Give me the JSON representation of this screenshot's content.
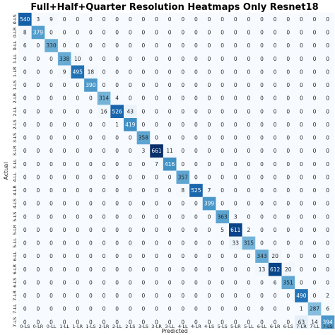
{
  "chart_data": {
    "type": "heatmap",
    "title": "Full+Half+Quarter Resolution Heatmaps Only Resnet18",
    "xlabel": "Predicted",
    "ylabel": "Actual",
    "labels": [
      "0-LS",
      "0-LR",
      "0-LL",
      "1-LL",
      "1-LR",
      "1-LS",
      "2-LR",
      "2-LL",
      "2-LS",
      "3-LS",
      "3-LR",
      "3-LL",
      "4-LL",
      "4-LR",
      "4-LS",
      "5-LS",
      "5-LR",
      "5-LL",
      "6-LL",
      "6-LR",
      "6-LS",
      "7-LR",
      "7-LL",
      "7-LS"
    ],
    "matrix": [
      [
        540,
        3,
        9,
        0,
        0,
        0,
        0,
        0,
        0,
        0,
        0,
        0,
        0,
        0,
        0,
        0,
        0,
        0,
        0,
        0,
        0,
        0,
        0,
        0
      ],
      [
        8,
        379,
        0,
        0,
        0,
        0,
        0,
        0,
        0,
        0,
        0,
        0,
        0,
        0,
        0,
        0,
        0,
        0,
        0,
        0,
        0,
        0,
        0,
        0
      ],
      [
        6,
        0,
        330,
        0,
        0,
        0,
        0,
        0,
        0,
        0,
        0,
        0,
        0,
        0,
        0,
        0,
        0,
        0,
        0,
        0,
        0,
        0,
        0,
        0
      ],
      [
        0,
        0,
        0,
        338,
        10,
        0,
        0,
        0,
        0,
        0,
        0,
        0,
        0,
        0,
        0,
        0,
        0,
        0,
        0,
        0,
        0,
        0,
        0,
        0
      ],
      [
        0,
        0,
        0,
        9,
        495,
        18,
        0,
        0,
        0,
        0,
        0,
        0,
        0,
        0,
        0,
        0,
        0,
        0,
        0,
        0,
        0,
        0,
        0,
        0
      ],
      [
        0,
        0,
        0,
        0,
        0,
        390,
        0,
        0,
        0,
        0,
        0,
        0,
        0,
        0,
        0,
        0,
        0,
        0,
        0,
        0,
        0,
        0,
        0,
        0
      ],
      [
        0,
        0,
        0,
        0,
        0,
        0,
        314,
        4,
        0,
        0,
        0,
        0,
        0,
        0,
        0,
        0,
        0,
        0,
        0,
        0,
        0,
        0,
        0,
        0
      ],
      [
        0,
        0,
        0,
        0,
        0,
        0,
        16,
        526,
        43,
        0,
        0,
        0,
        0,
        0,
        0,
        0,
        0,
        0,
        0,
        0,
        0,
        0,
        0,
        0
      ],
      [
        0,
        0,
        0,
        0,
        0,
        0,
        0,
        1,
        419,
        0,
        0,
        0,
        0,
        0,
        0,
        0,
        0,
        0,
        0,
        0,
        0,
        0,
        0,
        0
      ],
      [
        0,
        0,
        0,
        0,
        0,
        0,
        0,
        0,
        0,
        358,
        0,
        0,
        0,
        0,
        0,
        0,
        0,
        0,
        0,
        0,
        0,
        0,
        0,
        0
      ],
      [
        0,
        0,
        0,
        0,
        0,
        0,
        0,
        0,
        0,
        3,
        661,
        11,
        0,
        0,
        0,
        0,
        0,
        0,
        0,
        0,
        0,
        0,
        0,
        0
      ],
      [
        0,
        0,
        0,
        0,
        0,
        0,
        0,
        0,
        0,
        0,
        7,
        416,
        0,
        0,
        0,
        0,
        0,
        0,
        0,
        0,
        0,
        0,
        0,
        0
      ],
      [
        0,
        0,
        0,
        0,
        0,
        0,
        0,
        0,
        0,
        0,
        0,
        0,
        357,
        0,
        0,
        0,
        0,
        0,
        0,
        0,
        0,
        0,
        0,
        0
      ],
      [
        0,
        0,
        0,
        0,
        0,
        0,
        0,
        0,
        0,
        0,
        0,
        0,
        8,
        525,
        7,
        0,
        0,
        0,
        0,
        0,
        0,
        0,
        0,
        0
      ],
      [
        0,
        0,
        0,
        0,
        0,
        0,
        0,
        0,
        0,
        0,
        0,
        0,
        0,
        0,
        399,
        0,
        0,
        0,
        0,
        0,
        0,
        0,
        0,
        0
      ],
      [
        0,
        0,
        0,
        0,
        0,
        0,
        0,
        0,
        0,
        0,
        0,
        0,
        0,
        0,
        0,
        363,
        3,
        0,
        0,
        0,
        0,
        0,
        0,
        0
      ],
      [
        0,
        0,
        0,
        0,
        0,
        0,
        0,
        0,
        0,
        0,
        0,
        0,
        0,
        0,
        0,
        5,
        611,
        2,
        0,
        0,
        0,
        0,
        0,
        0
      ],
      [
        0,
        0,
        0,
        0,
        0,
        0,
        0,
        0,
        0,
        0,
        0,
        0,
        0,
        0,
        0,
        0,
        33,
        315,
        0,
        0,
        0,
        0,
        0,
        0
      ],
      [
        0,
        0,
        0,
        0,
        0,
        0,
        0,
        0,
        0,
        0,
        0,
        0,
        0,
        0,
        0,
        0,
        0,
        0,
        343,
        20,
        0,
        0,
        0,
        0
      ],
      [
        0,
        0,
        0,
        0,
        0,
        0,
        0,
        0,
        0,
        0,
        0,
        0,
        0,
        0,
        0,
        0,
        0,
        0,
        13,
        612,
        20,
        0,
        0,
        0
      ],
      [
        0,
        0,
        0,
        0,
        0,
        0,
        0,
        0,
        0,
        0,
        0,
        0,
        0,
        0,
        0,
        0,
        0,
        0,
        0,
        6,
        351,
        0,
        0,
        0
      ],
      [
        0,
        0,
        0,
        0,
        0,
        0,
        0,
        0,
        0,
        0,
        0,
        0,
        0,
        0,
        0,
        0,
        0,
        0,
        0,
        0,
        0,
        490,
        0,
        2
      ],
      [
        0,
        0,
        0,
        0,
        0,
        0,
        0,
        0,
        0,
        0,
        0,
        0,
        0,
        0,
        0,
        0,
        0,
        0,
        0,
        0,
        0,
        1,
        287,
        6
      ],
      [
        0,
        0,
        0,
        0,
        0,
        0,
        0,
        0,
        0,
        0,
        0,
        0,
        0,
        0,
        0,
        0,
        0,
        0,
        0,
        0,
        0,
        63,
        14,
        394
      ]
    ],
    "colormap": "Blues",
    "color_low": "#f7fbff",
    "color_high": "#08306b",
    "colorbar": false,
    "grid": false
  }
}
